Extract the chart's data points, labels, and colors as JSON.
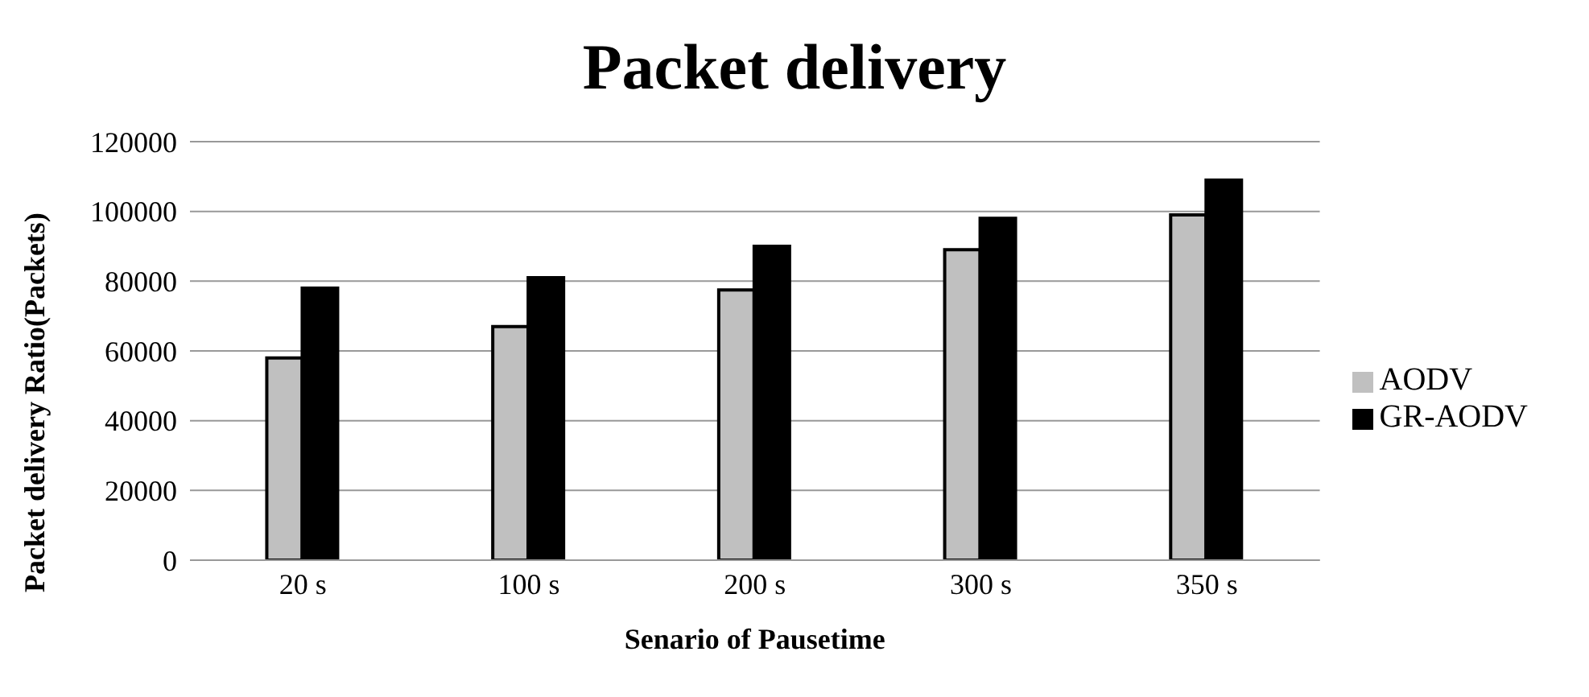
{
  "chart_data": {
    "type": "bar",
    "title": "Packet delivery",
    "xlabel": "Senario of Pausetime",
    "ylabel": "Packet delivery Ratio(Packets)",
    "categories": [
      "20 s",
      "100 s",
      "200 s",
      "300 s",
      "350 s"
    ],
    "series": [
      {
        "name": "AODV",
        "color": "#c0c0c0",
        "values": [
          58000,
          67000,
          77500,
          89000,
          99000
        ]
      },
      {
        "name": "GR-AODV",
        "color": "#000000",
        "values": [
          78000,
          81000,
          90000,
          98000,
          109000
        ]
      }
    ],
    "ylim": [
      0,
      120000
    ],
    "yticks": [
      0,
      20000,
      40000,
      60000,
      80000,
      100000,
      120000
    ],
    "grid": "y",
    "legend": "right"
  }
}
